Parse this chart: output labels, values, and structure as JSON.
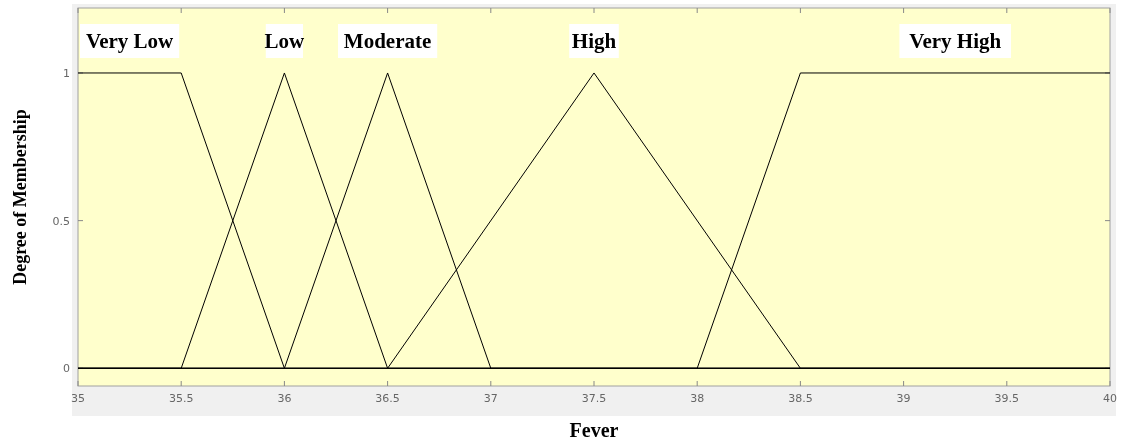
{
  "chart_data": {
    "type": "line",
    "xlabel": "Fever",
    "ylabel": "Degree of Membership",
    "xlim": [
      35,
      40
    ],
    "xticks": [
      35,
      35.5,
      36,
      36.5,
      37,
      37.5,
      38,
      38.5,
      39,
      39.5,
      40
    ],
    "ylim": [
      -0.06,
      1.22
    ],
    "yticks": [
      0,
      0.5,
      1
    ],
    "series": [
      {
        "name": "Very Low",
        "color": "#000000",
        "x": [
          35,
          35.5,
          36,
          40
        ],
        "values": [
          1,
          1,
          0,
          0
        ]
      },
      {
        "name": "Low",
        "color": "#000000",
        "x": [
          35,
          35.5,
          36,
          36.5,
          40
        ],
        "values": [
          0,
          0,
          1,
          0,
          0
        ]
      },
      {
        "name": "Moderate",
        "color": "#000000",
        "x": [
          35,
          36,
          36.5,
          37,
          40
        ],
        "values": [
          0,
          0,
          1,
          0,
          0
        ]
      },
      {
        "name": "High",
        "color": "#000000",
        "x": [
          35,
          36.5,
          37.5,
          38.5,
          40
        ],
        "values": [
          0,
          0,
          1,
          0,
          0
        ]
      },
      {
        "name": "Very High",
        "color": "#000000",
        "x": [
          35,
          38,
          38.5,
          40
        ],
        "values": [
          0,
          0,
          1,
          1
        ]
      }
    ],
    "grid": false,
    "marker": "none",
    "line_style": "solid"
  }
}
